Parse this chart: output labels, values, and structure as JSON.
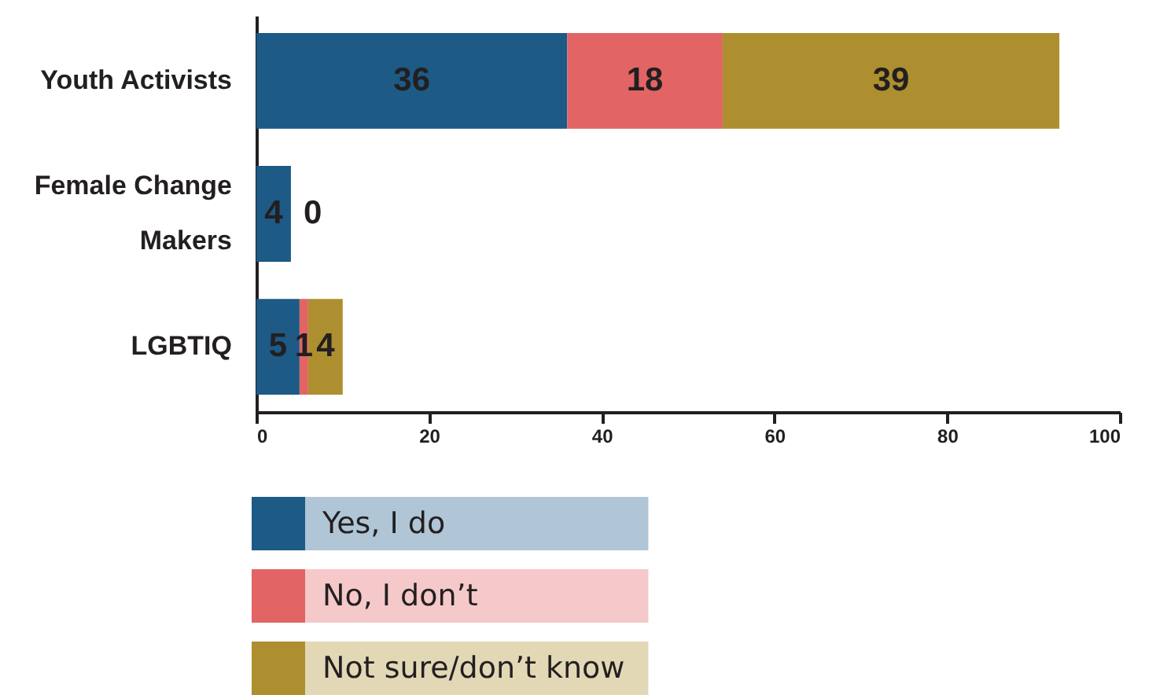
{
  "chart_data": {
    "type": "bar",
    "orientation": "horizontal",
    "stacked": true,
    "categories": [
      "Youth Activists",
      "Female Change Makers",
      "LGBTIQ"
    ],
    "series": [
      {
        "name": "Yes, I do",
        "color": "#1d5a86",
        "values": [
          36,
          4,
          5
        ],
        "value_labels": [
          "36",
          "4",
          "5"
        ]
      },
      {
        "name": "No, I don’t",
        "color": "#e26464",
        "values": [
          18,
          0,
          1
        ],
        "value_labels": [
          "18",
          "0",
          "1"
        ]
      },
      {
        "name": "Not sure/don’t know",
        "color": "#ad8f2f",
        "values": [
          39,
          0,
          4
        ],
        "value_labels": [
          "39",
          null,
          "4"
        ]
      }
    ],
    "xlim": [
      0,
      100
    ],
    "xticks": [
      0,
      20,
      40,
      60,
      80,
      100
    ],
    "legend": "bottom left"
  }
}
